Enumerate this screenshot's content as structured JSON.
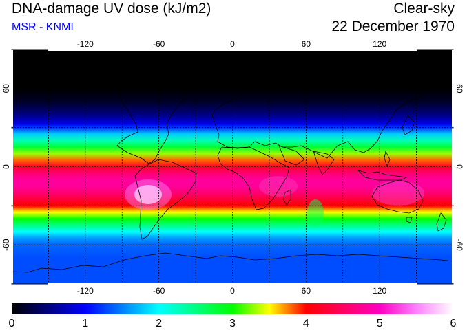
{
  "header": {
    "title": "DNA-damage UV dose (kJ/m2)",
    "subtitle": "MSR - KNMI",
    "condition": "Clear-sky",
    "date": "22 December 1970"
  },
  "map": {
    "projection": "equirectangular",
    "lon_range": [
      -180,
      180
    ],
    "lat_range": [
      -90,
      90
    ],
    "lon_ticks": [
      -120,
      -60,
      0,
      60,
      120
    ],
    "lat_ticks": [
      60,
      0,
      -60
    ],
    "lon_tick_labels": [
      "-120",
      "-60",
      "0",
      "60",
      "120"
    ],
    "lat_tick_labels": [
      "60",
      "0",
      "-60"
    ],
    "gridlines": "dotted every 30 degrees"
  },
  "colorbar": {
    "min": 0,
    "max": 6,
    "labels": [
      "0",
      "1",
      "2",
      "3",
      "4",
      "5",
      "6"
    ],
    "stops": [
      {
        "v": 0.0,
        "color": "#000000"
      },
      {
        "v": 0.5,
        "color": "#000080"
      },
      {
        "v": 1.0,
        "color": "#0000ff"
      },
      {
        "v": 1.5,
        "color": "#0080ff"
      },
      {
        "v": 2.0,
        "color": "#00ffff"
      },
      {
        "v": 2.5,
        "color": "#00ff80"
      },
      {
        "v": 3.0,
        "color": "#00ff00"
      },
      {
        "v": 3.5,
        "color": "#ffff00"
      },
      {
        "v": 4.0,
        "color": "#ff0000"
      },
      {
        "v": 4.5,
        "color": "#ff0060"
      },
      {
        "v": 5.0,
        "color": "#ff00c0"
      },
      {
        "v": 5.5,
        "color": "#ff80ff"
      },
      {
        "v": 6.0,
        "color": "#ffffff"
      }
    ]
  },
  "dose_by_latitude": [
    {
      "lat": 90,
      "v": 0.0
    },
    {
      "lat": 60,
      "v": 0.0
    },
    {
      "lat": 50,
      "v": 0.15
    },
    {
      "lat": 40,
      "v": 0.5
    },
    {
      "lat": 33,
      "v": 0.9
    },
    {
      "lat": 30,
      "v": 1.2
    },
    {
      "lat": 25,
      "v": 1.8
    },
    {
      "lat": 20,
      "v": 2.3
    },
    {
      "lat": 15,
      "v": 2.8
    },
    {
      "lat": 10,
      "v": 3.3
    },
    {
      "lat": 5,
      "v": 3.8
    },
    {
      "lat": 0,
      "v": 4.2
    },
    {
      "lat": -5,
      "v": 4.6
    },
    {
      "lat": -10,
      "v": 4.8
    },
    {
      "lat": -15,
      "v": 4.8
    },
    {
      "lat": -20,
      "v": 4.6
    },
    {
      "lat": -25,
      "v": 4.3
    },
    {
      "lat": -30,
      "v": 4.0
    },
    {
      "lat": -35,
      "v": 3.5
    },
    {
      "lat": -40,
      "v": 3.0
    },
    {
      "lat": -45,
      "v": 2.5
    },
    {
      "lat": -50,
      "v": 2.0
    },
    {
      "lat": -55,
      "v": 1.6
    },
    {
      "lat": -60,
      "v": 1.4
    },
    {
      "lat": -70,
      "v": 1.3
    },
    {
      "lat": -80,
      "v": 1.3
    },
    {
      "lat": -90,
      "v": 1.3
    }
  ]
}
